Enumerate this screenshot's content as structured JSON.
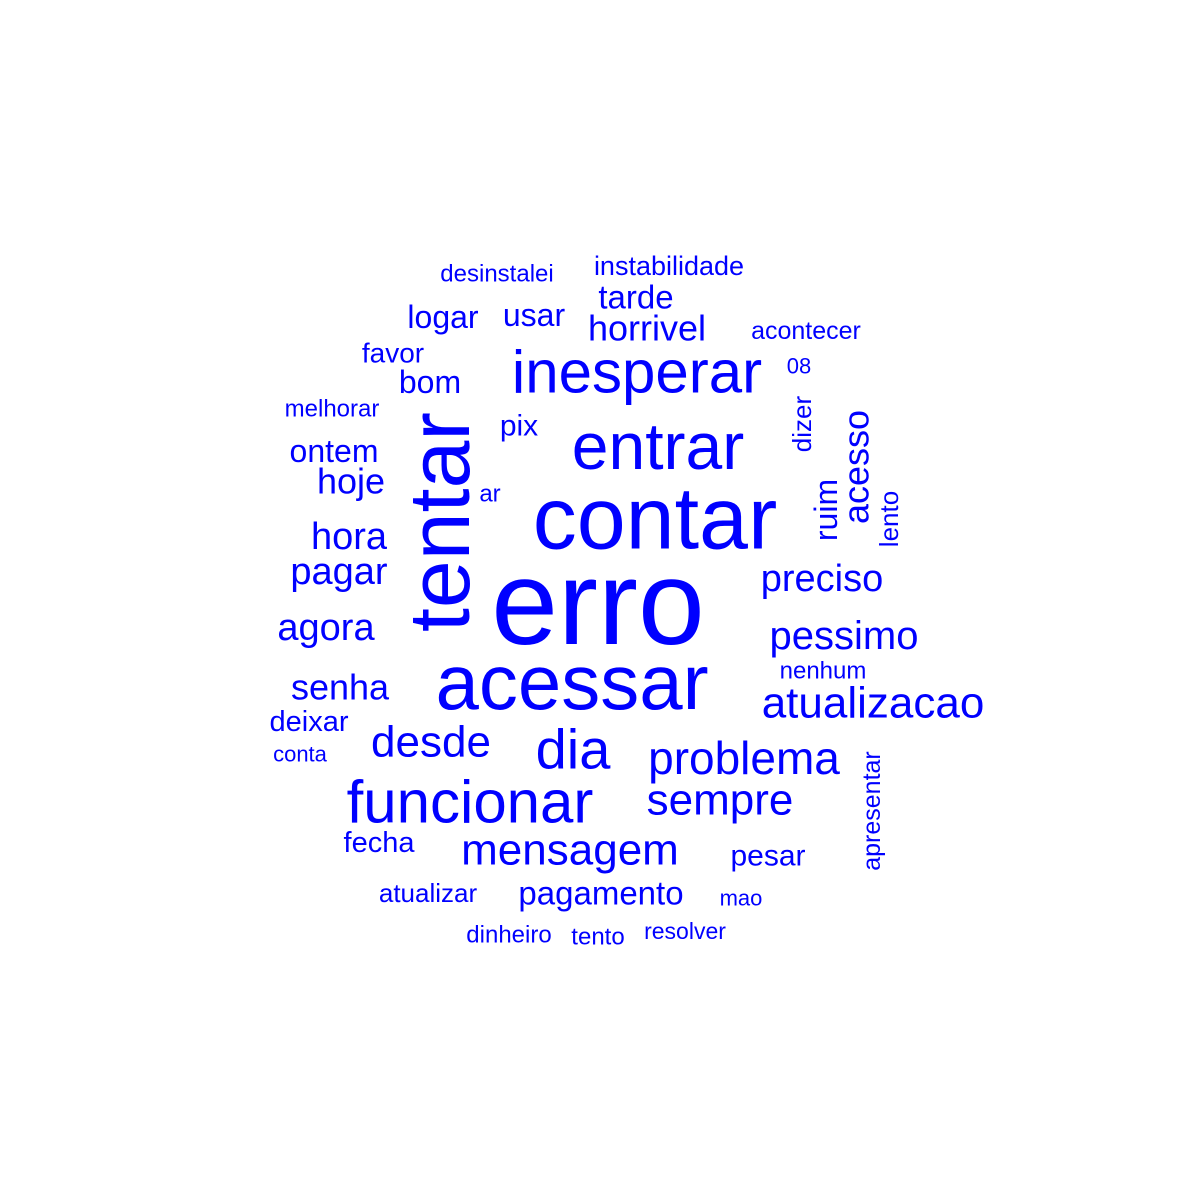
{
  "colors": {
    "word": "#0000ff",
    "background": "#ffffff"
  },
  "words": [
    {
      "text": "erro",
      "weight": 1.0
    },
    {
      "text": "contar",
      "weight": 0.78
    },
    {
      "text": "tentar",
      "weight": 0.72
    },
    {
      "text": "acessar",
      "weight": 0.7
    },
    {
      "text": "entrar",
      "weight": 0.55
    },
    {
      "text": "inesperar",
      "weight": 0.52
    },
    {
      "text": "funcionar",
      "weight": 0.5
    },
    {
      "text": "dia",
      "weight": 0.45
    },
    {
      "text": "problema",
      "weight": 0.38
    },
    {
      "text": "mensagem",
      "weight": 0.36
    },
    {
      "text": "sempre",
      "weight": 0.36
    },
    {
      "text": "atualizacao",
      "weight": 0.36
    },
    {
      "text": "desde",
      "weight": 0.35
    },
    {
      "text": "pessimo",
      "weight": 0.32
    },
    {
      "text": "preciso",
      "weight": 0.3
    },
    {
      "text": "hora",
      "weight": 0.3
    },
    {
      "text": "acesso",
      "weight": 0.3
    },
    {
      "text": "pagar",
      "weight": 0.29
    },
    {
      "text": "agora",
      "weight": 0.29
    },
    {
      "text": "horrivel",
      "weight": 0.28
    },
    {
      "text": "hoje",
      "weight": 0.28
    },
    {
      "text": "senha",
      "weight": 0.28
    },
    {
      "text": "pagamento",
      "weight": 0.26
    },
    {
      "text": "tarde",
      "weight": 0.26
    },
    {
      "text": "ruim",
      "weight": 0.24
    },
    {
      "text": "ontem",
      "weight": 0.24
    },
    {
      "text": "bom",
      "weight": 0.24
    },
    {
      "text": "logar",
      "weight": 0.24
    },
    {
      "text": "usar",
      "weight": 0.24
    },
    {
      "text": "pesar",
      "weight": 0.23
    },
    {
      "text": "pix",
      "weight": 0.23
    },
    {
      "text": "deixar",
      "weight": 0.22
    },
    {
      "text": "fecha",
      "weight": 0.22
    },
    {
      "text": "instabilidade",
      "weight": 0.21
    },
    {
      "text": "favor",
      "weight": 0.21
    },
    {
      "text": "dizer",
      "weight": 0.2
    },
    {
      "text": "lento",
      "weight": 0.2
    },
    {
      "text": "apresentar",
      "weight": 0.2
    },
    {
      "text": "atualizar",
      "weight": 0.19
    },
    {
      "text": "melhorar",
      "weight": 0.18
    },
    {
      "text": "acontecer",
      "weight": 0.18
    },
    {
      "text": "nenhum",
      "weight": 0.18
    },
    {
      "text": "desinstalei",
      "weight": 0.18
    },
    {
      "text": "ar",
      "weight": 0.18
    },
    {
      "text": "resolver",
      "weight": 0.17
    },
    {
      "text": "dinheiro",
      "weight": 0.17
    },
    {
      "text": "tento",
      "weight": 0.17
    },
    {
      "text": "conta",
      "weight": 0.16
    },
    {
      "text": "mao",
      "weight": 0.16
    },
    {
      "text": "08",
      "weight": 0.16
    }
  ]
}
